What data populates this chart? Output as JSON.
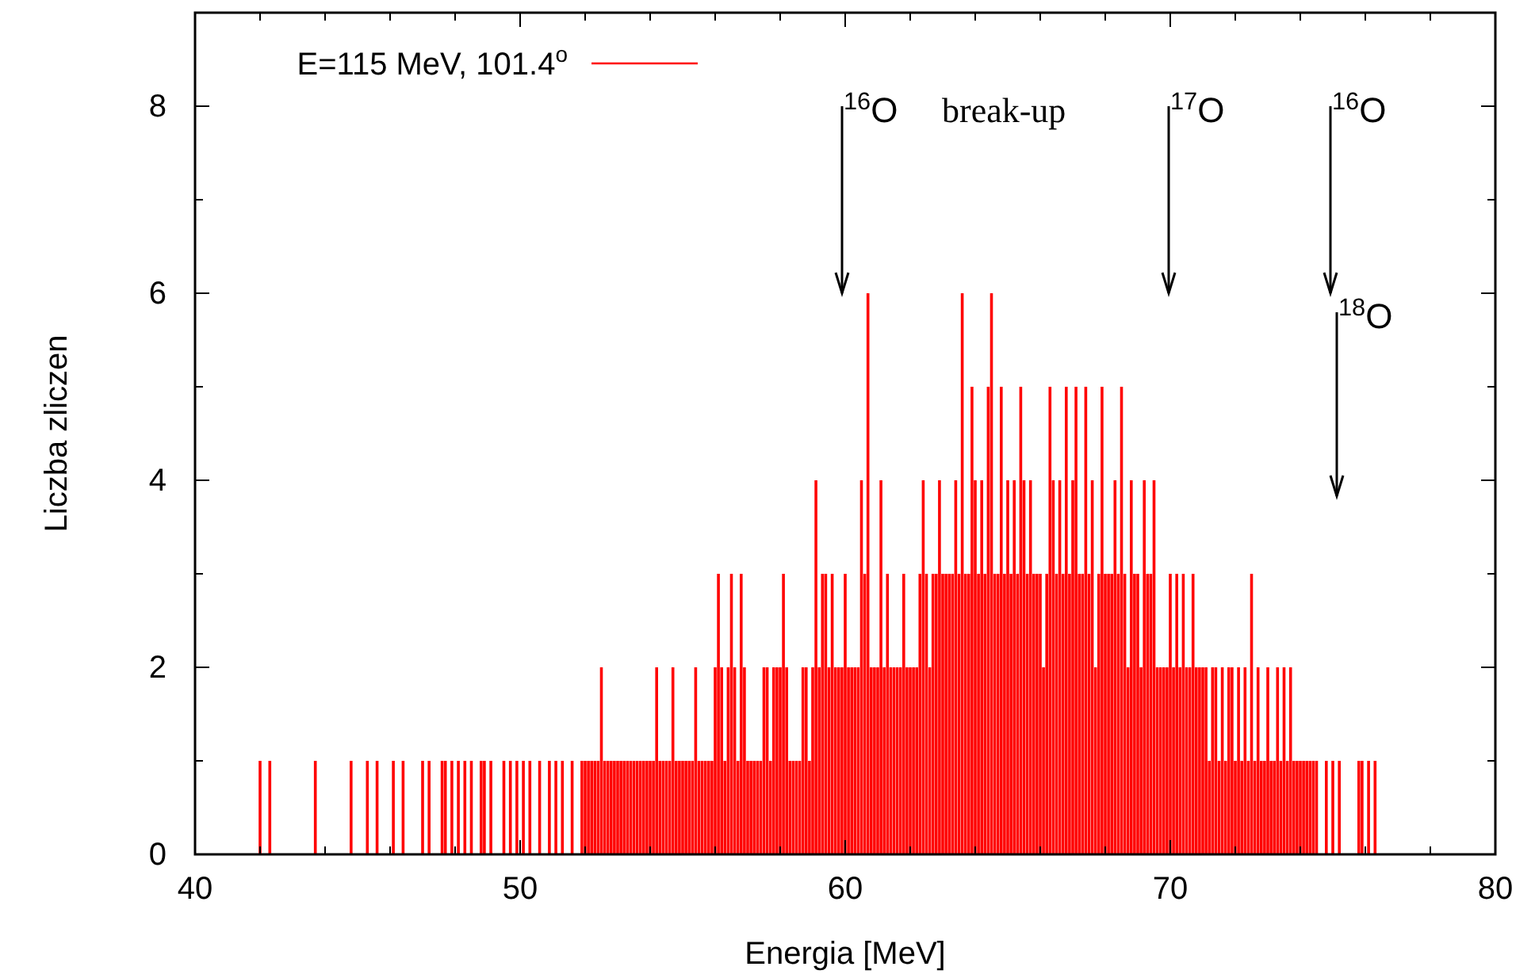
{
  "chart_data": {
    "type": "bar",
    "xlabel": "Energia [MeV]",
    "ylabel": "Liczba zliczen",
    "xlim": [
      40,
      80
    ],
    "xticks": [
      40,
      {
        "value": 42,
        "label": null
      },
      {
        "value": 44,
        "label": null
      },
      {
        "value": 46,
        "label": null
      },
      {
        "value": 48,
        "label": null
      },
      50,
      {
        "value": 52,
        "label": null
      },
      {
        "value": 54,
        "label": null
      },
      {
        "value": 56,
        "label": null
      },
      {
        "value": 58,
        "label": null
      },
      60,
      {
        "value": 62,
        "label": null
      },
      {
        "value": 64,
        "label": null
      },
      {
        "value": 66,
        "label": null
      },
      {
        "value": 68,
        "label": null
      },
      70,
      {
        "value": 72,
        "label": null
      },
      {
        "value": 74,
        "label": null
      },
      {
        "value": 76,
        "label": null
      },
      {
        "value": 78,
        "label": null
      },
      80
    ],
    "ylim": [
      0,
      9
    ],
    "yticks": [
      0,
      {
        "value": 1,
        "label": null
      },
      2,
      {
        "value": 3,
        "label": null
      },
      4,
      {
        "value": 5,
        "label": null
      },
      6,
      {
        "value": 7,
        "label": null
      },
      8
    ],
    "legend": "top left",
    "grid": false,
    "annotations": [
      "$^{16}$O",
      "break-up",
      "$^{17}$O",
      "$^{16}$O",
      "$^{18}$O"
    ],
    "x": [
      42.0,
      42.3,
      43.7,
      44.8,
      45.3,
      45.6,
      46.1,
      46.4,
      47.0,
      47.2,
      47.6,
      47.7,
      47.9,
      48.1,
      48.3,
      48.5,
      48.8,
      48.9,
      49.1,
      49.5,
      49.7,
      49.9,
      50.1,
      50.3,
      50.6,
      50.9,
      51.1,
      51.3,
      51.6,
      51.9,
      52.0,
      52.1,
      52.2,
      52.3,
      52.4,
      52.5,
      52.6,
      52.7,
      52.8,
      52.9,
      53.0,
      53.1,
      53.2,
      53.3,
      53.4,
      53.5,
      53.6,
      53.7,
      53.8,
      53.9,
      54.0,
      54.1,
      54.2,
      54.3,
      54.4,
      54.5,
      54.6,
      54.7,
      54.8,
      54.9,
      55.0,
      55.1,
      55.2,
      55.3,
      55.4,
      55.5,
      55.6,
      55.7,
      55.8,
      55.9,
      56.0,
      56.1,
      56.2,
      56.3,
      56.4,
      56.5,
      56.6,
      56.7,
      56.8,
      56.9,
      57.0,
      57.1,
      57.2,
      57.3,
      57.4,
      57.5,
      57.6,
      57.7,
      57.8,
      57.9,
      58.0,
      58.1,
      58.2,
      58.3,
      58.4,
      58.5,
      58.6,
      58.7,
      58.8,
      58.9,
      59.0,
      59.1,
      59.2,
      59.3,
      59.4,
      59.5,
      59.6,
      59.7,
      59.8,
      59.9,
      60.0,
      60.1,
      60.2,
      60.3,
      60.4,
      60.5,
      60.6,
      60.7,
      60.8,
      60.9,
      61.0,
      61.1,
      61.2,
      61.3,
      61.4,
      61.5,
      61.6,
      61.7,
      61.8,
      61.9,
      62.0,
      62.1,
      62.2,
      62.3,
      62.4,
      62.5,
      62.6,
      62.7,
      62.8,
      62.9,
      63.0,
      63.1,
      63.2,
      63.3,
      63.4,
      63.5,
      63.6,
      63.7,
      63.8,
      63.9,
      64.0,
      64.1,
      64.2,
      64.3,
      64.4,
      64.5,
      64.6,
      64.7,
      64.8,
      64.9,
      65.0,
      65.1,
      65.2,
      65.3,
      65.4,
      65.5,
      65.6,
      65.7,
      65.8,
      65.9,
      66.0,
      66.1,
      66.2,
      66.3,
      66.4,
      66.5,
      66.6,
      66.7,
      66.8,
      66.9,
      67.0,
      67.1,
      67.2,
      67.3,
      67.4,
      67.5,
      67.6,
      67.7,
      67.8,
      67.9,
      68.0,
      68.1,
      68.2,
      68.3,
      68.4,
      68.5,
      68.6,
      68.7,
      68.8,
      68.9,
      69.0,
      69.1,
      69.2,
      69.3,
      69.4,
      69.5,
      69.6,
      69.7,
      69.8,
      69.9,
      70.0,
      70.1,
      70.2,
      70.3,
      70.4,
      70.5,
      70.6,
      70.7,
      70.8,
      70.9,
      71.0,
      71.1,
      71.2,
      71.3,
      71.4,
      71.5,
      71.6,
      71.7,
      71.8,
      71.9,
      72.0,
      72.1,
      72.2,
      72.3,
      72.4,
      72.5,
      72.6,
      72.7,
      72.8,
      72.9,
      73.0,
      73.1,
      73.2,
      73.3,
      73.4,
      73.5,
      73.6,
      73.7,
      73.8,
      73.9,
      74.0,
      74.1,
      74.2,
      74.3,
      74.4,
      74.5,
      74.8,
      75.0,
      75.2,
      75.8,
      75.9,
      76.1,
      76.3
    ],
    "series": [
      {
        "name": "E=115 MeV, 101.4$^{o}$",
        "color": "#ff0000",
        "values": [
          1,
          1,
          1,
          1,
          1,
          1,
          1,
          1,
          1,
          1,
          1,
          1,
          1,
          1,
          1,
          1,
          1,
          1,
          1,
          1,
          1,
          1,
          1,
          1,
          1,
          1,
          1,
          1,
          1,
          1,
          1,
          1,
          1,
          1,
          1,
          2,
          1,
          1,
          1,
          1,
          1,
          1,
          1,
          1,
          1,
          1,
          1,
          1,
          1,
          1,
          1,
          1,
          2,
          1,
          1,
          1,
          1,
          2,
          1,
          1,
          1,
          1,
          1,
          1,
          2,
          1,
          1,
          1,
          1,
          1,
          2,
          3,
          2,
          1,
          2,
          3,
          2,
          1,
          3,
          2,
          1,
          1,
          1,
          1,
          1,
          2,
          2,
          1,
          2,
          2,
          2,
          3,
          2,
          1,
          1,
          1,
          1,
          2,
          2,
          1,
          2,
          4,
          2,
          3,
          3,
          2,
          3,
          2,
          2,
          2,
          3,
          2,
          2,
          2,
          2,
          4,
          3,
          6,
          2,
          2,
          2,
          4,
          2,
          3,
          2,
          2,
          2,
          2,
          3,
          2,
          2,
          2,
          2,
          3,
          4,
          3,
          2,
          3,
          3,
          4,
          3,
          3,
          3,
          3,
          4,
          3,
          6,
          3,
          3,
          5,
          4,
          3,
          4,
          3,
          5,
          6,
          3,
          3,
          5,
          3,
          4,
          3,
          4,
          3,
          5,
          4,
          3,
          4,
          3,
          3,
          3,
          2,
          3,
          5,
          4,
          3,
          4,
          3,
          5,
          3,
          4,
          5,
          3,
          3,
          5,
          3,
          4,
          2,
          3,
          5,
          3,
          3,
          3,
          4,
          3,
          5,
          3,
          2,
          4,
          3,
          3,
          2,
          4,
          3,
          3,
          4,
          2,
          2,
          2,
          2,
          3,
          2,
          3,
          2,
          3,
          2,
          2,
          3,
          2,
          2,
          2,
          2,
          1,
          2,
          2,
          1,
          2,
          1,
          2,
          2,
          1,
          2,
          1,
          2,
          1,
          3,
          1,
          2,
          1,
          1,
          2,
          1,
          1,
          2,
          1,
          2,
          1,
          2,
          1,
          1,
          1,
          1,
          1,
          1,
          1,
          1,
          1,
          1,
          1,
          1,
          1,
          1,
          1
        ]
      }
    ]
  }
}
